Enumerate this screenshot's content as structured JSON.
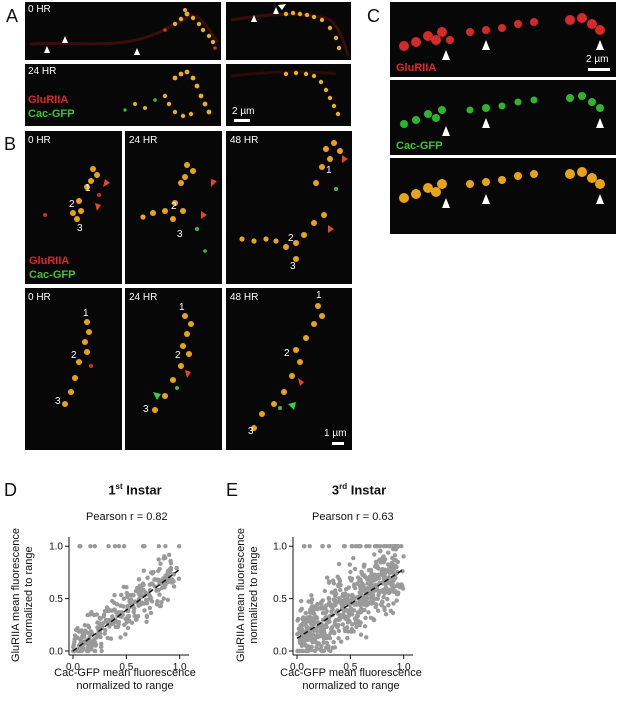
{
  "panels": {
    "A": {
      "letter": "A",
      "time_top": "0 HR",
      "time_bottom": "24 HR",
      "label_red": "GluRIIA",
      "label_green": "Cac-GFP",
      "scale": "2 µm"
    },
    "B": {
      "letter": "B",
      "times": [
        "0 HR",
        "24 HR",
        "48 HR"
      ],
      "label_red": "GluRIIA",
      "label_green": "Cac-GFP",
      "scale": "1 µm",
      "numbers": [
        "1",
        "2",
        "3"
      ]
    },
    "C": {
      "letter": "C",
      "label_red": "GluRIIA",
      "label_green": "Cac-GFP",
      "scale": "2 µm"
    },
    "D": {
      "letter": "D"
    },
    "E": {
      "letter": "E"
    }
  },
  "colors": {
    "red": "#e0252b",
    "green": "#3fc23a",
    "gray_point": "#9a9a9a",
    "arrow_white": "#ffffff",
    "arrow_red": "#e8452a",
    "arrow_green": "#3ad23a"
  },
  "chart_data": [
    {
      "type": "scatter",
      "title_main": "1",
      "title_sup": "st",
      "title_rest": " Instar",
      "annotation": "Pearson r = 0.82",
      "xlabel_line1": "Cac-GFP mean fluorescence",
      "xlabel_line2": "normalized to range",
      "ylabel_line1": "GluRIIA mean fluorescence",
      "ylabel_line2": "normalized to range",
      "xlim": [
        0,
        1.05
      ],
      "ylim": [
        0,
        1.05
      ],
      "xticks": [
        "0.0",
        "0.5",
        "1.0"
      ],
      "yticks": [
        "0.0",
        "0.5",
        "1.0"
      ],
      "fit_line": {
        "x": [
          0.0,
          1.0
        ],
        "y": [
          0.0,
          0.78
        ]
      },
      "pearson_r": 0.82,
      "seed": 11,
      "n_points": 320,
      "spread": 0.13
    },
    {
      "type": "scatter",
      "title_main": "3",
      "title_sup": "rd",
      "title_rest": " Instar",
      "annotation": "Pearson r = 0.63",
      "xlabel_line1": "Cac-GFP mean fluorescence",
      "xlabel_line2": "normalized to range",
      "ylabel_line1": "GluRIIA mean fluorescence",
      "ylabel_line2": "normalized to range",
      "xlim": [
        0,
        1.05
      ],
      "ylim": [
        0,
        1.05
      ],
      "xticks": [
        "0.0",
        "0.5",
        "1.0"
      ],
      "yticks": [
        "0.0",
        "0.5",
        "1.0"
      ],
      "fit_line": {
        "x": [
          0.0,
          1.0
        ],
        "y": [
          0.12,
          0.78
        ]
      },
      "pearson_r": 0.63,
      "seed": 23,
      "n_points": 650,
      "spread": 0.2
    }
  ]
}
